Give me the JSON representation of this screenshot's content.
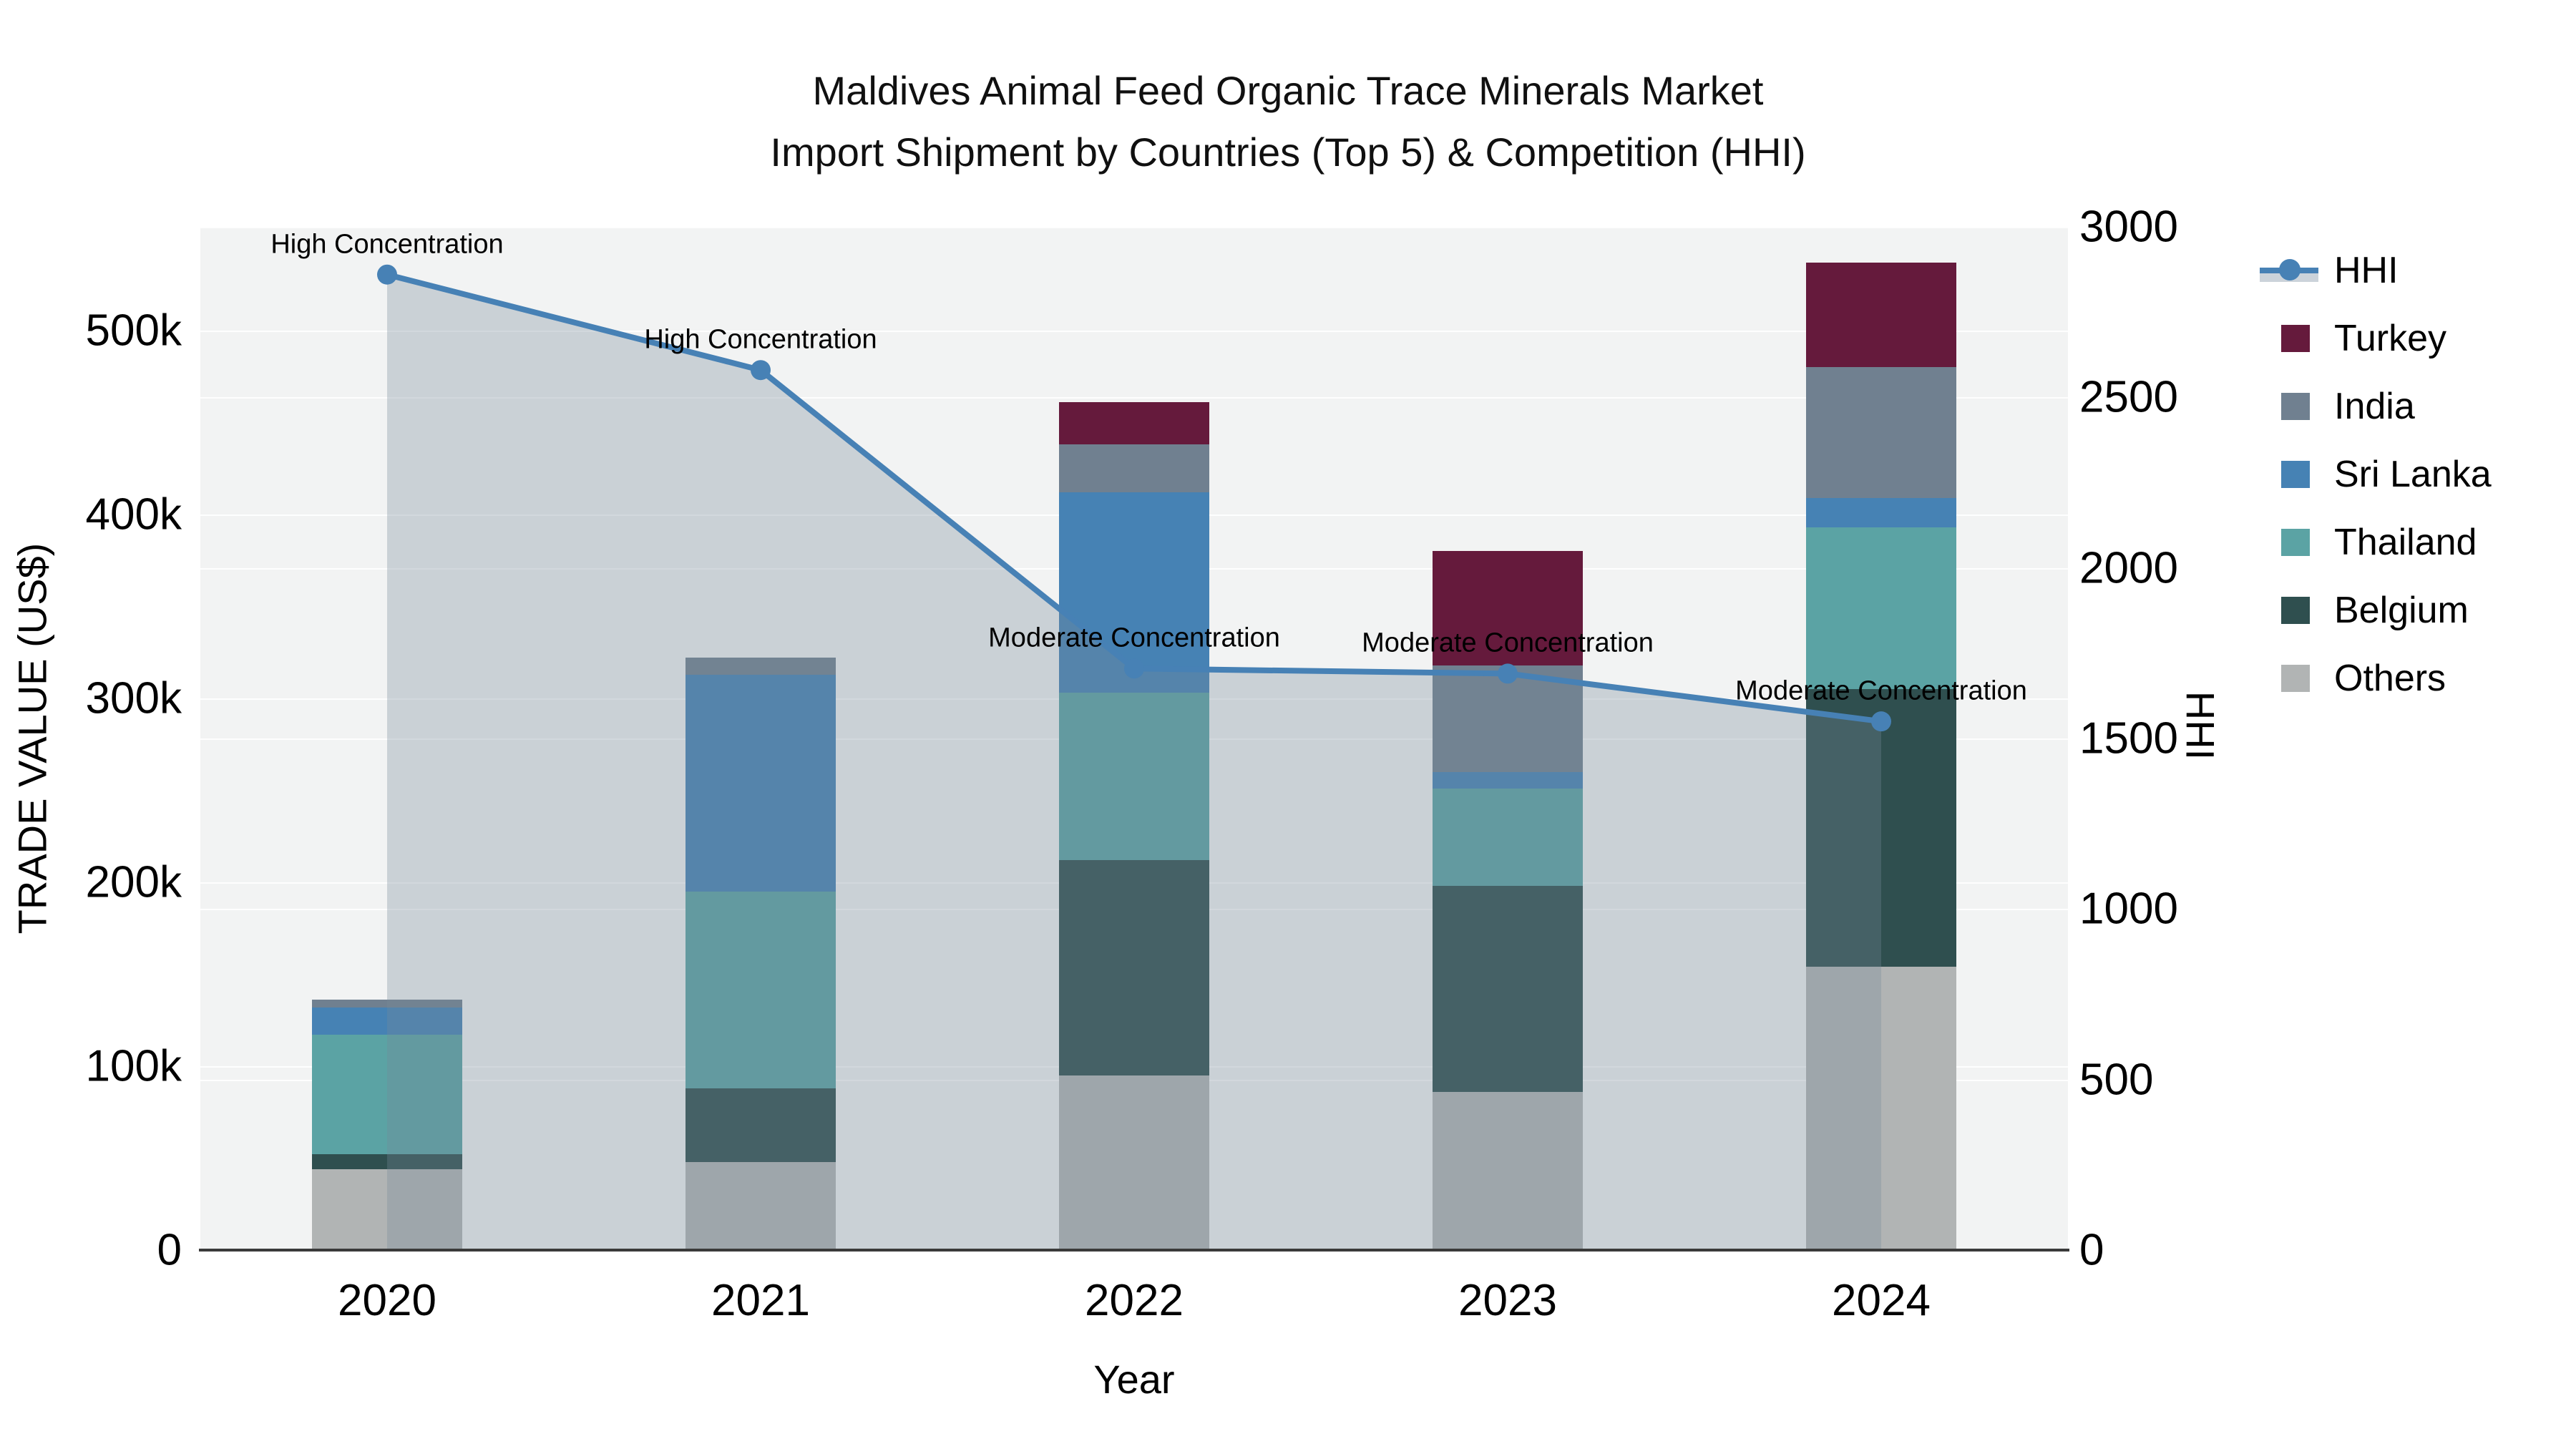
{
  "title": {
    "line1": "Maldives Animal Feed Organic Trace Minerals Market",
    "line2": "Import Shipment by Countries (Top 5) & Competition (HHI)"
  },
  "axes": {
    "left": {
      "title": "TRADE VALUE (US$)",
      "tick_labels": [
        "0",
        "100k",
        "200k",
        "300k",
        "400k",
        "500k"
      ]
    },
    "right": {
      "title": "HHI",
      "tick_labels": [
        "0",
        "500",
        "1000",
        "1500",
        "2000",
        "2500",
        "3000"
      ]
    },
    "x": {
      "title": "Year",
      "tick_labels": [
        "2020",
        "2021",
        "2022",
        "2023",
        "2024"
      ]
    }
  },
  "legend": {
    "items": [
      {
        "label": "HHI",
        "type": "line",
        "color": "#4781b5"
      },
      {
        "label": "Turkey",
        "type": "swatch",
        "color": "#651a3c"
      },
      {
        "label": "India",
        "type": "swatch",
        "color": "#708090"
      },
      {
        "label": "Sri Lanka",
        "type": "swatch",
        "color": "#4682b4"
      },
      {
        "label": "Thailand",
        "type": "swatch",
        "color": "#5ba3a4"
      },
      {
        "label": "Belgium",
        "type": "swatch",
        "color": "#2f4f4f"
      },
      {
        "label": "Others",
        "type": "swatch",
        "color": "#b1b4b4"
      }
    ]
  },
  "chart_data": {
    "type": "bar",
    "subtype": "stacked-bars-with-line",
    "title": "Maldives Animal Feed Organic Trace Minerals Market — Import Shipment by Countries (Top 5) & Competition (HHI)",
    "categories": [
      2020,
      2021,
      2022,
      2023,
      2024
    ],
    "unit": "US$ thousands",
    "series": [
      {
        "name": "Others",
        "color": "#b1b4b4",
        "values": [
          44,
          48,
          95,
          86,
          154
        ]
      },
      {
        "name": "Belgium",
        "color": "#2f4f4f",
        "values": [
          8,
          40,
          117,
          112,
          151
        ]
      },
      {
        "name": "Thailand",
        "color": "#5ba3a4",
        "values": [
          65,
          107,
          91,
          53,
          88
        ]
      },
      {
        "name": "Sri Lanka",
        "color": "#4682b4",
        "values": [
          15,
          118,
          109,
          9,
          16
        ]
      },
      {
        "name": "India",
        "color": "#708090",
        "values": [
          4,
          9,
          26,
          58,
          71
        ]
      },
      {
        "name": "Turkey",
        "color": "#651a3c",
        "values": [
          0,
          0,
          23,
          62,
          57
        ]
      }
    ],
    "bar_totals_k": [
      136,
      322,
      461,
      380,
      537
    ],
    "hhi_line": {
      "name": "HHI",
      "color": "#4781b5",
      "fill_color": "rgba(119,136,153,0.32)",
      "values": [
        2860,
        2580,
        1705,
        1690,
        1550
      ]
    },
    "annotations": [
      {
        "x": 2020,
        "text": "High Concentration"
      },
      {
        "x": 2021,
        "text": "High Concentration"
      },
      {
        "x": 2022,
        "text": "Moderate Concentration"
      },
      {
        "x": 2023,
        "text": "Moderate Concentration"
      },
      {
        "x": 2024,
        "text": "Moderate Concentration"
      }
    ],
    "xlabel": "Year",
    "ylabel_left": "TRADE VALUE (US$)",
    "ylabel_right": "HHI",
    "ylim_left_k": [
      0,
      556
    ],
    "ylim_right": [
      0,
      3000
    ],
    "left_ticks_k": [
      0,
      100,
      200,
      300,
      400,
      500
    ],
    "right_ticks": [
      0,
      500,
      1000,
      1500,
      2000,
      2500,
      3000
    ],
    "grid": true,
    "legend_position": "right"
  }
}
